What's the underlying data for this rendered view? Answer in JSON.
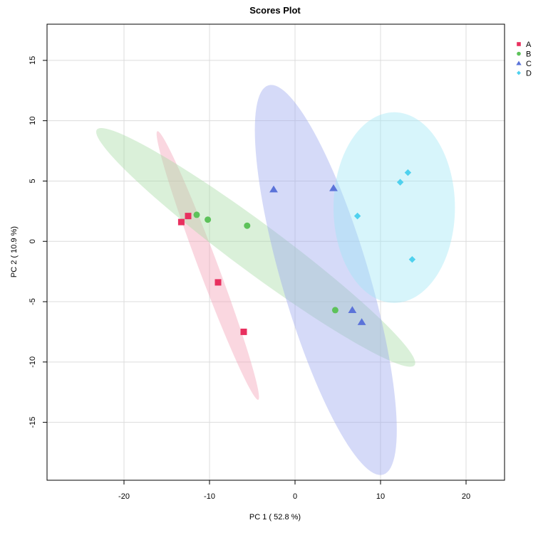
{
  "chart_data": {
    "type": "scatter",
    "title": "Scores Plot",
    "xlabel": "PC 1 ( 52.8 %)",
    "ylabel": "PC 2 ( 10.9 %)",
    "xlim": [
      -29,
      24.5
    ],
    "ylim": [
      -19.8,
      18
    ],
    "x_ticks": [
      -20,
      -10,
      0,
      10,
      20
    ],
    "y_ticks": [
      -15,
      -10,
      -5,
      0,
      5,
      10,
      15
    ],
    "x_tick_labels": [
      "-20",
      "-10",
      "0",
      "10",
      "20"
    ],
    "y_tick_labels": [
      "-15",
      "-10",
      "-5",
      "0",
      "5",
      "10",
      "15"
    ],
    "grid": true,
    "legend": "top-right, outside plot",
    "series": [
      {
        "name": "A",
        "marker": "square",
        "color": "#E8305F",
        "ellipse_color": "#F4A0B4",
        "ellipse": {
          "cx": -10.2,
          "cy": -2.0,
          "semi_major": 12.6,
          "semi_minor": 1.05,
          "angle_deg": -62.0
        },
        "points": [
          {
            "x": -13.3,
            "y": 1.6
          },
          {
            "x": -12.5,
            "y": 2.1
          },
          {
            "x": -9.0,
            "y": -3.4
          },
          {
            "x": -6.0,
            "y": -7.5
          }
        ]
      },
      {
        "name": "B",
        "marker": "circle",
        "color": "#5DC25A",
        "ellipse_color": "#A8DCA4",
        "ellipse": {
          "cx": -4.6,
          "cy": -0.5,
          "semi_major": 21.0,
          "semi_minor": 2.2,
          "angle_deg": -27.5
        },
        "points": [
          {
            "x": -11.5,
            "y": 2.2
          },
          {
            "x": -10.2,
            "y": 1.8
          },
          {
            "x": -5.6,
            "y": 1.3
          },
          {
            "x": 4.7,
            "y": -5.7
          }
        ]
      },
      {
        "name": "C",
        "marker": "triangle",
        "color": "#5B73D9",
        "ellipse_color": "#9CA7EE",
        "ellipse": {
          "cx": 3.6,
          "cy": -3.2,
          "semi_major": 17.5,
          "semi_minor": 4.9,
          "angle_deg": -66.5
        },
        "points": [
          {
            "x": -2.5,
            "y": 4.3
          },
          {
            "x": 4.5,
            "y": 4.4
          },
          {
            "x": 6.7,
            "y": -5.7
          },
          {
            "x": 7.8,
            "y": -6.7
          }
        ]
      },
      {
        "name": "D",
        "marker": "diamond",
        "color": "#4FD1EE",
        "ellipse_color": "#A0E6F6",
        "ellipse": {
          "cx": 11.6,
          "cy": 2.8,
          "semi_major": 7.9,
          "semi_minor": 7.1,
          "angle_deg": 90.0
        },
        "points": [
          {
            "x": 7.3,
            "y": 2.1
          },
          {
            "x": 12.3,
            "y": 4.9
          },
          {
            "x": 13.2,
            "y": 5.7
          },
          {
            "x": 13.7,
            "y": -1.5
          }
        ]
      }
    ]
  }
}
